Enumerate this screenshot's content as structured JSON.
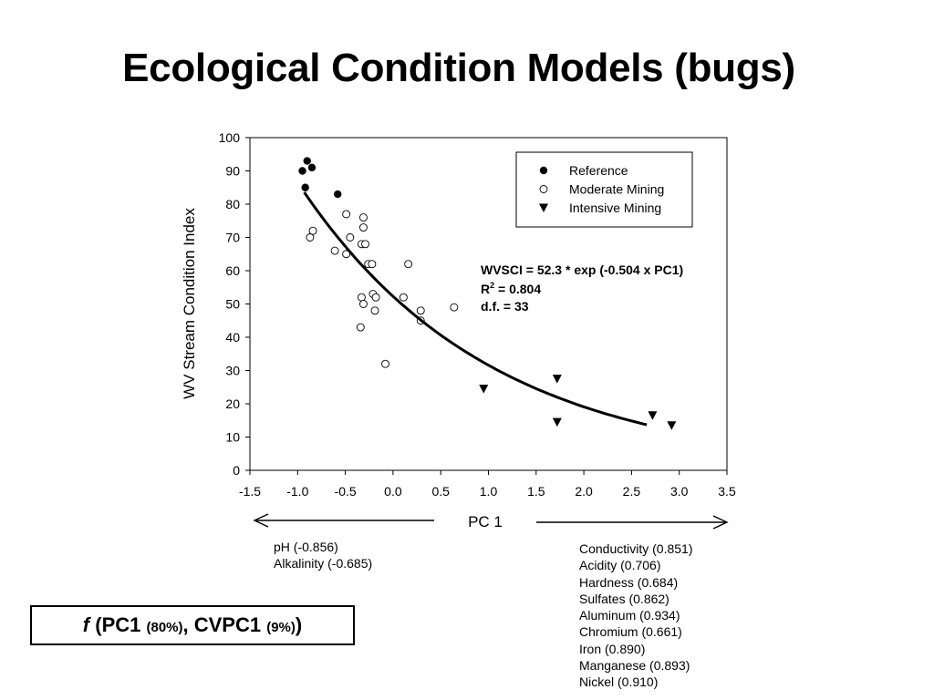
{
  "slide": {
    "title": "Ecological Condition Models (bugs)"
  },
  "chart_data": {
    "type": "scatter",
    "title": "",
    "xlabel": "PC 1",
    "ylabel": "WV Stream Condition Index",
    "xlim": [
      -1.5,
      3.5
    ],
    "ylim": [
      0,
      100
    ],
    "x_ticks": [
      "-1.5",
      "-1.0",
      "-0.5",
      "0.0",
      "0.5",
      "1.0",
      "1.5",
      "2.0",
      "2.5",
      "3.0",
      "3.5"
    ],
    "y_ticks": [
      "0",
      "10",
      "20",
      "30",
      "40",
      "50",
      "60",
      "70",
      "80",
      "90",
      "100"
    ],
    "grid": false,
    "legend_position": "top-right",
    "series": [
      {
        "name": "Reference",
        "marker": "filled-circle",
        "points": [
          [
            -0.95,
            90
          ],
          [
            -0.92,
            85
          ],
          [
            -0.9,
            93
          ],
          [
            -0.85,
            91
          ],
          [
            -0.58,
            83
          ]
        ]
      },
      {
        "name": "Moderate Mining",
        "marker": "open-circle",
        "points": [
          [
            -0.87,
            70
          ],
          [
            -0.84,
            72
          ],
          [
            -0.61,
            66
          ],
          [
            -0.49,
            77
          ],
          [
            -0.49,
            65
          ],
          [
            -0.45,
            70
          ],
          [
            -0.33,
            68
          ],
          [
            -0.31,
            76
          ],
          [
            -0.31,
            73
          ],
          [
            -0.29,
            68
          ],
          [
            -0.26,
            62
          ],
          [
            -0.33,
            52
          ],
          [
            -0.31,
            50
          ],
          [
            -0.34,
            43
          ],
          [
            -0.22,
            62
          ],
          [
            -0.21,
            53
          ],
          [
            -0.18,
            52
          ],
          [
            -0.19,
            48
          ],
          [
            -0.08,
            32
          ],
          [
            0.11,
            52
          ],
          [
            0.16,
            62
          ],
          [
            0.29,
            48
          ],
          [
            0.29,
            45
          ],
          [
            0.64,
            49
          ]
        ]
      },
      {
        "name": "Intensive Mining",
        "marker": "filled-triangle-down",
        "points": [
          [
            0.95,
            24.5
          ],
          [
            1.72,
            27.5
          ],
          [
            1.72,
            14.5
          ],
          [
            2.72,
            16.5
          ],
          [
            2.92,
            13.5
          ]
        ]
      }
    ],
    "fit_curve": {
      "a": 52.3,
      "b": -0.504,
      "x_range": [
        -0.93,
        2.66
      ]
    },
    "annotations": {
      "equation": "WVSCI = 52.3 * exp (-0.504 x PC1)",
      "r2_prefix": "R",
      "r2_sup": "2",
      "r2_value": " = 0.804",
      "df": "d.f. = 33"
    }
  },
  "loadings": {
    "negative": [
      "pH (-0.856)",
      "Alkalinity (-0.685)"
    ],
    "positive": [
      "Conductivity (0.851)",
      "Acidity (0.706)",
      "Hardness (0.684)",
      "Sulfates (0.862)",
      "Aluminum (0.934)",
      "Chromium (0.661)",
      "Iron (0.890)",
      "Manganese (0.893)",
      "Nickel (0.910)"
    ]
  },
  "formula_box": {
    "f": "f",
    "pc1": " (PC1 ",
    "pc1_pct": "(80%)",
    "sep": ", CVPC1 ",
    "cvpc1_pct": "(9%)",
    "close": ")"
  }
}
